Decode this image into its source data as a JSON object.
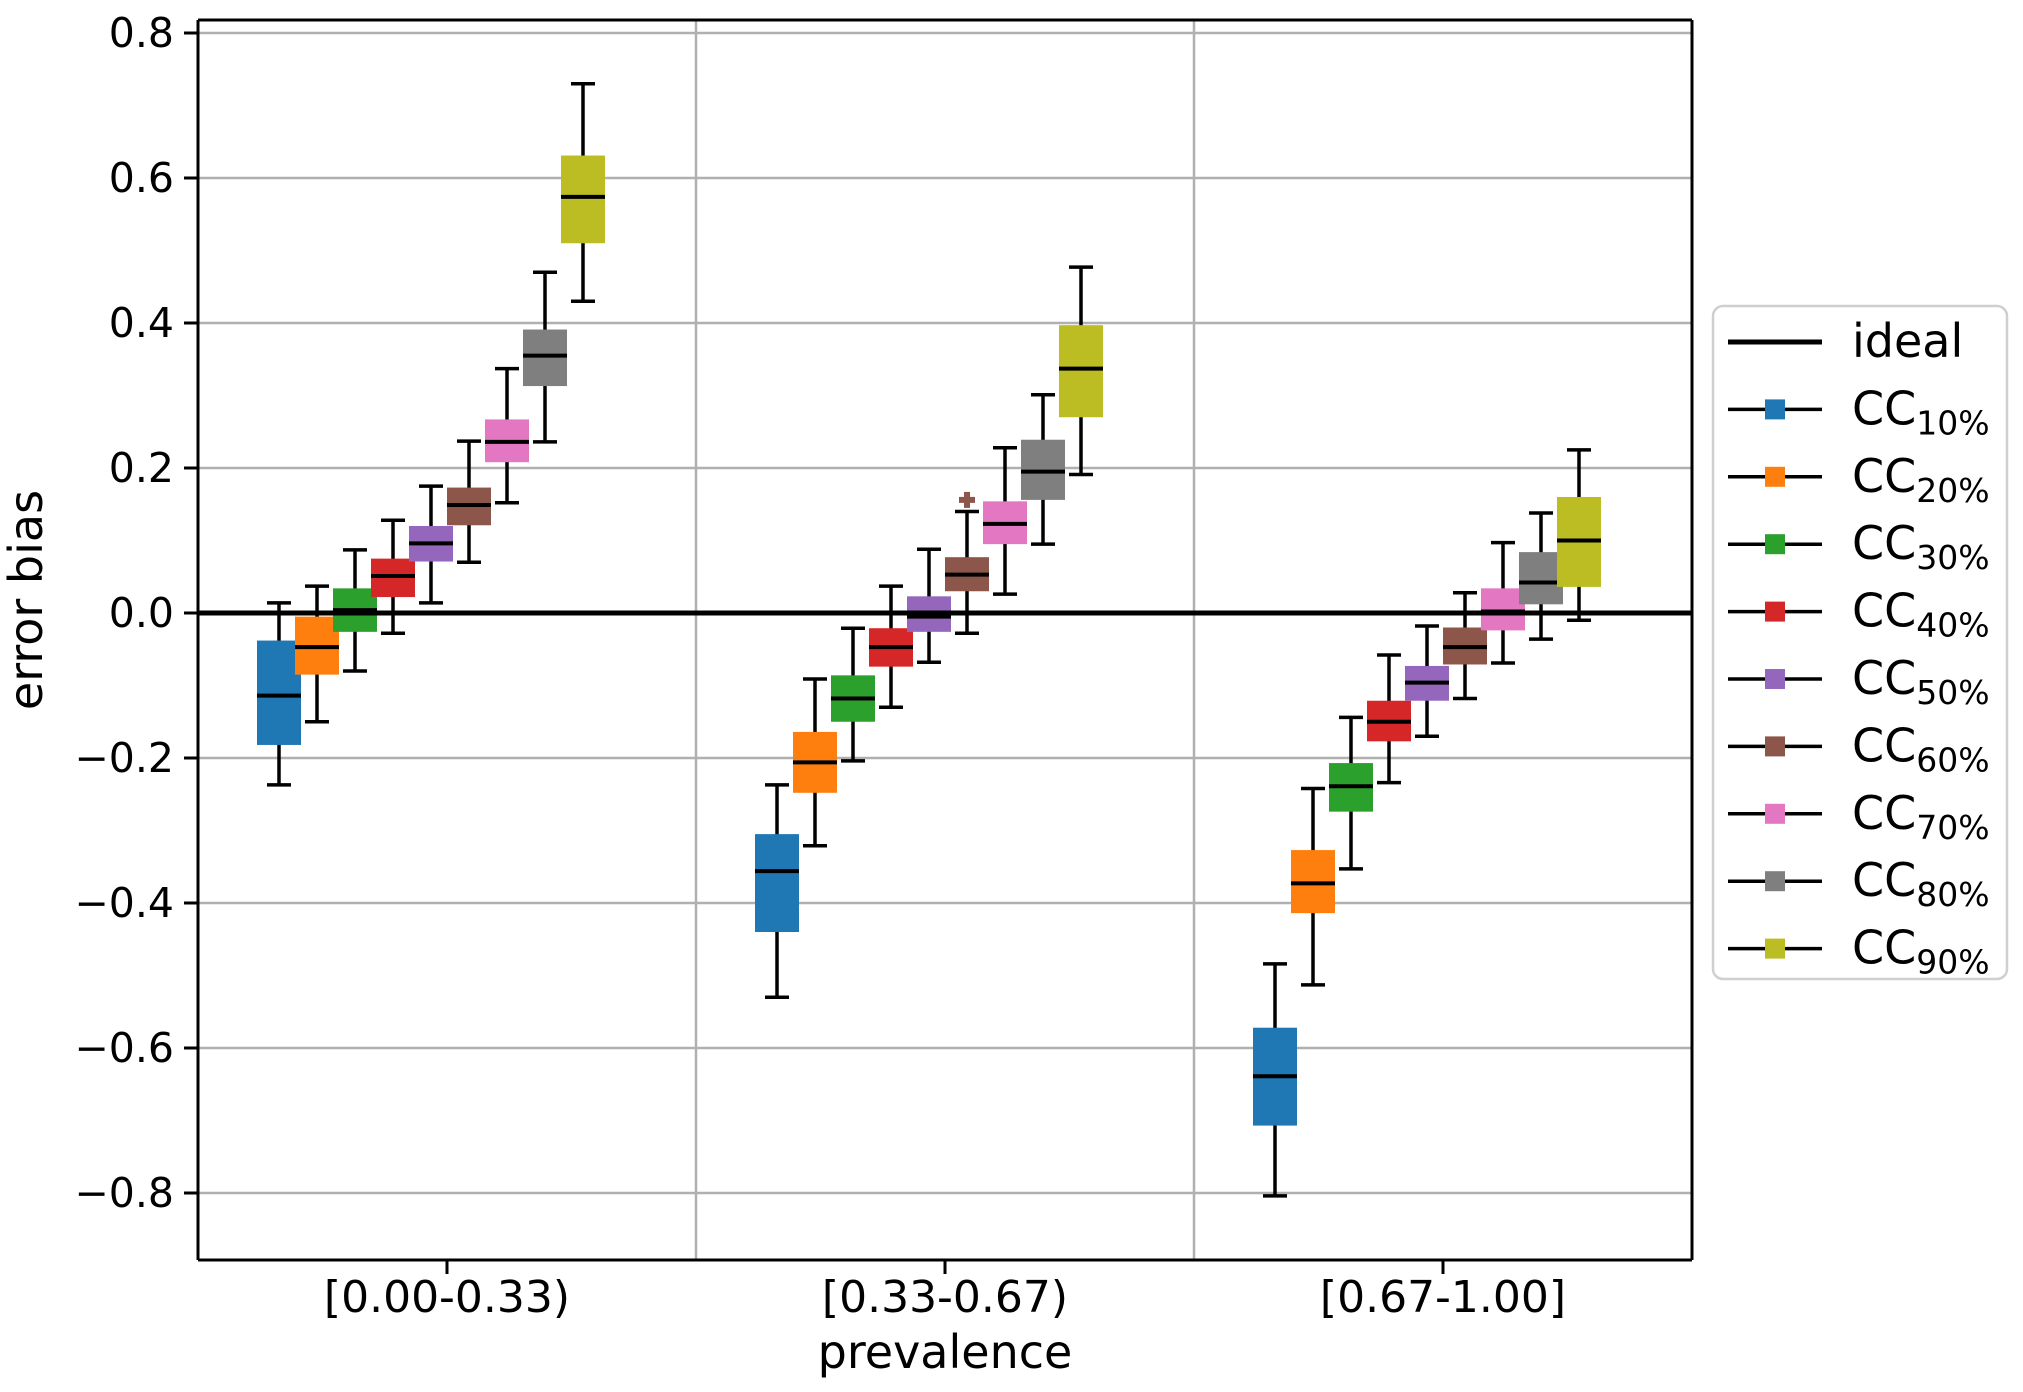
{
  "chart_data": {
    "type": "boxplot",
    "title": "",
    "xlabel": "prevalence",
    "ylabel": "error bias",
    "categories": [
      "[0.00-0.33)",
      "[0.33-0.67)",
      "[0.67-1.00]"
    ],
    "y_ticks": [
      0.8,
      0.6,
      0.4,
      0.2,
      0.0,
      -0.2,
      -0.4,
      -0.6,
      -0.8
    ],
    "y_tick_labels": [
      "0.8",
      "0.6",
      "0.4",
      "0.2",
      "0.0",
      "−0.2",
      "−0.4",
      "−0.6",
      "−0.8"
    ],
    "ylim": [
      -0.89,
      0.81
    ],
    "grid": {
      "horizontal": true,
      "color": "#b0b0b0",
      "group_separators": true
    },
    "legend_position": "outside-right",
    "ideal_line": {
      "label": "ideal",
      "value": 0.0,
      "color": "#000000"
    },
    "series": [
      {
        "id": "cc10",
        "name": "CC 10%",
        "label_main": "CC",
        "label_sub": "10%",
        "color": "#1f77b4",
        "boxes": [
          {
            "whislo": -0.237,
            "q1": -0.182,
            "med": -0.114,
            "q3": -0.038,
            "whishi": 0.014
          },
          {
            "whislo": -0.53,
            "q1": -0.44,
            "med": -0.356,
            "q3": -0.305,
            "whishi": -0.237
          },
          {
            "whislo": -0.804,
            "q1": -0.707,
            "med": -0.639,
            "q3": -0.572,
            "whishi": -0.484
          }
        ]
      },
      {
        "id": "cc20",
        "name": "CC 20%",
        "label_main": "CC",
        "label_sub": "20%",
        "color": "#ff7f0e",
        "boxes": [
          {
            "whislo": -0.15,
            "q1": -0.085,
            "med": -0.047,
            "q3": -0.005,
            "whishi": 0.037
          },
          {
            "whislo": -0.321,
            "q1": -0.248,
            "med": -0.206,
            "q3": -0.164,
            "whishi": -0.091
          },
          {
            "whislo": -0.513,
            "q1": -0.414,
            "med": -0.373,
            "q3": -0.327,
            "whishi": -0.242
          }
        ]
      },
      {
        "id": "cc30",
        "name": "CC 30%",
        "label_main": "CC",
        "label_sub": "30%",
        "color": "#2ca02c",
        "boxes": [
          {
            "whislo": -0.08,
            "q1": -0.026,
            "med": 0.004,
            "q3": 0.034,
            "whishi": 0.087
          },
          {
            "whislo": -0.204,
            "q1": -0.15,
            "med": -0.118,
            "q3": -0.086,
            "whishi": -0.021
          },
          {
            "whislo": -0.353,
            "q1": -0.274,
            "med": -0.239,
            "q3": -0.207,
            "whishi": -0.144
          }
        ]
      },
      {
        "id": "cc40",
        "name": "CC 40%",
        "label_main": "CC",
        "label_sub": "40%",
        "color": "#d62728",
        "boxes": [
          {
            "whislo": -0.028,
            "q1": 0.022,
            "med": 0.051,
            "q3": 0.075,
            "whishi": 0.128
          },
          {
            "whislo": -0.13,
            "q1": -0.074,
            "med": -0.047,
            "q3": -0.021,
            "whishi": 0.037
          },
          {
            "whislo": -0.234,
            "q1": -0.177,
            "med": -0.15,
            "q3": -0.121,
            "whishi": -0.058
          }
        ]
      },
      {
        "id": "cc50",
        "name": "CC 50%",
        "label_main": "CC",
        "label_sub": "50%",
        "color": "#9467bd",
        "boxes": [
          {
            "whislo": 0.014,
            "q1": 0.071,
            "med": 0.096,
            "q3": 0.12,
            "whishi": 0.175
          },
          {
            "whislo": -0.068,
            "q1": -0.026,
            "med": -0.005,
            "q3": 0.023,
            "whishi": 0.088
          },
          {
            "whislo": -0.17,
            "q1": -0.121,
            "med": -0.096,
            "q3": -0.073,
            "whishi": -0.018
          }
        ]
      },
      {
        "id": "cc60",
        "name": "CC 60%",
        "label_main": "CC",
        "label_sub": "60%",
        "color": "#8c564b",
        "boxes": [
          {
            "whislo": 0.07,
            "q1": 0.121,
            "med": 0.149,
            "q3": 0.173,
            "whishi": 0.237
          },
          {
            "whislo": -0.028,
            "q1": 0.03,
            "med": 0.053,
            "q3": 0.077,
            "whishi": 0.14,
            "fliers": [
              0.156
            ]
          },
          {
            "whislo": -0.118,
            "q1": -0.071,
            "med": -0.047,
            "q3": -0.02,
            "whishi": 0.028
          }
        ]
      },
      {
        "id": "cc70",
        "name": "CC 70%",
        "label_main": "CC",
        "label_sub": "70%",
        "color": "#e377c2",
        "boxes": [
          {
            "whislo": 0.152,
            "q1": 0.208,
            "med": 0.236,
            "q3": 0.267,
            "whishi": 0.337
          },
          {
            "whislo": 0.026,
            "q1": 0.095,
            "med": 0.123,
            "q3": 0.154,
            "whishi": 0.228
          },
          {
            "whislo": -0.069,
            "q1": -0.024,
            "med": 0.002,
            "q3": 0.034,
            "whishi": 0.097
          }
        ]
      },
      {
        "id": "cc80",
        "name": "CC 80%",
        "label_main": "CC",
        "label_sub": "80%",
        "color": "#7f7f7f",
        "boxes": [
          {
            "whislo": 0.236,
            "q1": 0.313,
            "med": 0.355,
            "q3": 0.391,
            "whishi": 0.47
          },
          {
            "whislo": 0.095,
            "q1": 0.156,
            "med": 0.195,
            "q3": 0.239,
            "whishi": 0.301
          },
          {
            "whislo": -0.036,
            "q1": 0.012,
            "med": 0.042,
            "q3": 0.084,
            "whishi": 0.138
          }
        ]
      },
      {
        "id": "cc90",
        "name": "CC 90%",
        "label_main": "CC",
        "label_sub": "90%",
        "color": "#bcbd22",
        "boxes": [
          {
            "whislo": 0.43,
            "q1": 0.51,
            "med": 0.574,
            "q3": 0.631,
            "whishi": 0.73
          },
          {
            "whislo": 0.191,
            "q1": 0.27,
            "med": 0.337,
            "q3": 0.397,
            "whishi": 0.477
          },
          {
            "whislo": -0.01,
            "q1": 0.036,
            "med": 0.1,
            "q3": 0.16,
            "whishi": 0.225
          }
        ]
      }
    ]
  }
}
